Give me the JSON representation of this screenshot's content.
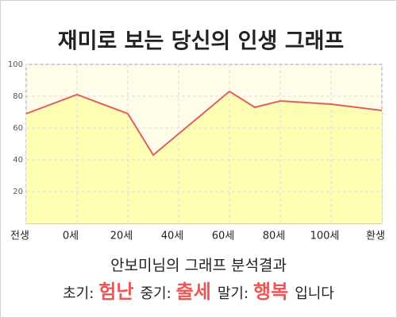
{
  "chart_data": {
    "type": "area",
    "title": "재미로 보는 당신의 인생 그래프",
    "x": [
      -20,
      0,
      20,
      30,
      60,
      70,
      80,
      100,
      120
    ],
    "values": [
      69,
      81,
      69,
      43,
      83,
      73,
      77,
      75,
      71
    ],
    "color": "#e06060",
    "fill": "#ffffb4",
    "background": "#fffde9",
    "xlim": [
      -20,
      120
    ],
    "xticks": [
      {
        "value": -20,
        "label": "전생"
      },
      {
        "value": 0,
        "label": "0세"
      },
      {
        "value": 20,
        "label": "20세"
      },
      {
        "value": 40,
        "label": "40세"
      },
      {
        "value": 60,
        "label": "60세"
      },
      {
        "value": 80,
        "label": "80세"
      },
      {
        "value": 100,
        "label": "100세"
      },
      {
        "value": 120,
        "label": "환생"
      }
    ],
    "ylim": [
      0,
      100
    ],
    "yticks": [
      20,
      40,
      60,
      80,
      100
    ],
    "grid": true
  },
  "result": {
    "title": "안보미님의 그래프 분석결과",
    "items": [
      {
        "label": "초기:",
        "value": "험난"
      },
      {
        "label": "중기:",
        "value": "출세"
      },
      {
        "label": "말기:",
        "value": "행복"
      }
    ],
    "ending": "입니다"
  }
}
